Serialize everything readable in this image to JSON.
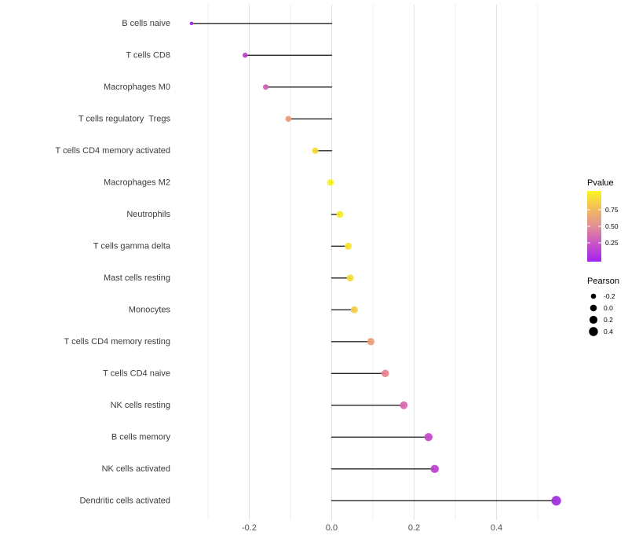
{
  "figure": {
    "background": "#ffffff"
  },
  "chart_data": {
    "type": "lollipop",
    "orientation": "horizontal",
    "title": "",
    "xlabel": "",
    "ylabel": "",
    "x_axis": {
      "tick_labels": [
        "-0.2",
        "0.0",
        "0.2",
        "0.4"
      ],
      "tick_values": [
        -0.2,
        0.0,
        0.2,
        0.4
      ],
      "gridline_values": [
        -0.3,
        -0.2,
        -0.1,
        0.0,
        0.1,
        0.2,
        0.3,
        0.4,
        0.5
      ],
      "range": [
        -0.382,
        0.588
      ],
      "grid": true
    },
    "points": [
      {
        "label": "B cells naive",
        "pearson": -0.34,
        "color": "#A328E4"
      },
      {
        "label": "T cells CD8",
        "pearson": -0.21,
        "color": "#BA40CB"
      },
      {
        "label": "Macrophages M0",
        "pearson": -0.16,
        "color": "#CE5FB1"
      },
      {
        "label": "T cells regulatory  Tregs",
        "pearson": -0.105,
        "color": "#EC9B79"
      },
      {
        "label": "T cells CD4 memory activated",
        "pearson": -0.04,
        "color": "#F2DC3D"
      },
      {
        "label": "Macrophages M2",
        "pearson": -0.003,
        "color": "#F9F21D"
      },
      {
        "label": "Neutrophils",
        "pearson": 0.02,
        "color": "#F7EC23"
      },
      {
        "label": "T cells gamma delta",
        "pearson": 0.04,
        "color": "#F6E22D"
      },
      {
        "label": "Mast cells resting",
        "pearson": 0.045,
        "color": "#F5DC35"
      },
      {
        "label": "Monocytes",
        "pearson": 0.055,
        "color": "#F3CC4B"
      },
      {
        "label": "T cells CD4 memory resting",
        "pearson": 0.095,
        "color": "#EE9C72"
      },
      {
        "label": "T cells CD4 naive",
        "pearson": 0.13,
        "color": "#E8828F"
      },
      {
        "label": "NK cells resting",
        "pearson": 0.175,
        "color": "#DB64B0"
      },
      {
        "label": "B cells memory",
        "pearson": 0.235,
        "color": "#C443CB"
      },
      {
        "label": "NK cells activated",
        "pearson": 0.25,
        "color": "#BE3ED1"
      },
      {
        "label": "Dendritic cells activated",
        "pearson": 0.545,
        "color": "#A02BDE"
      }
    ],
    "legend_pvalue": {
      "title": "Pvalue",
      "tick_labels": [
        "0.75",
        "0.50",
        "0.25"
      ],
      "gradient_stops_top_to_bottom": [
        "#FAF521",
        "#F2BC5E",
        "#E28F97",
        "#C853C6",
        "#A322F2"
      ]
    },
    "legend_pearson": {
      "title": "Pearson",
      "dot_color": "#000000",
      "items": [
        {
          "label": "-0.2",
          "value": -0.2
        },
        {
          "label": "0.0",
          "value": 0.0
        },
        {
          "label": "0.2",
          "value": 0.2
        },
        {
          "label": "0.4",
          "value": 0.4
        }
      ]
    }
  }
}
